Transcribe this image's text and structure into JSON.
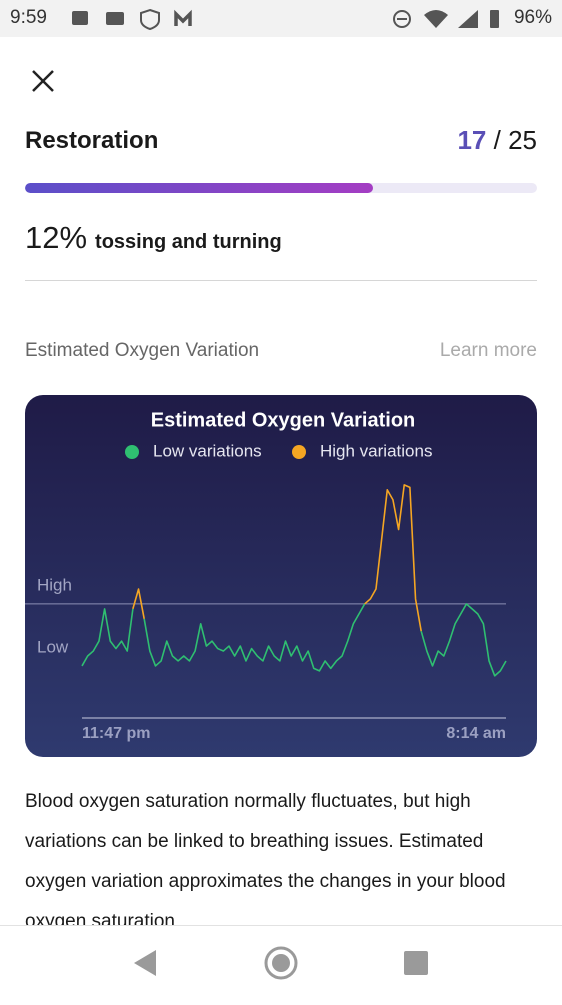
{
  "status_bar": {
    "time": "9:59",
    "battery": "96%"
  },
  "restoration": {
    "title": "Restoration",
    "score": 17,
    "separator": "/",
    "total": 25
  },
  "metric": {
    "value": "12%",
    "label": "tossing and turning"
  },
  "section": {
    "label": "Estimated Oxygen Variation",
    "link": "Learn more"
  },
  "chart_data": {
    "type": "line",
    "title": "Estimated Oxygen Variation",
    "ylim": [
      0,
      100
    ],
    "yticks": [
      {
        "value": 46,
        "label": "High"
      },
      {
        "value": 21,
        "label": "Low"
      }
    ],
    "reference_line": 46,
    "xlabels": [
      "11:47 pm",
      "8:14 am"
    ],
    "series": [
      {
        "name": "Low variations",
        "color": "#2fbf71",
        "values": [
          21,
          25,
          27,
          31,
          44,
          31,
          28,
          31,
          27,
          44,
          null,
          40,
          27,
          21,
          23,
          31,
          25,
          23,
          25,
          23,
          27,
          38,
          29,
          31,
          28,
          27,
          29,
          25,
          29,
          23,
          28,
          25,
          23,
          29,
          25,
          23,
          31,
          25,
          29,
          23,
          27,
          20,
          19,
          23,
          20,
          23,
          25,
          31,
          38,
          42,
          46,
          null,
          null,
          null,
          null,
          null,
          null,
          null,
          null,
          null,
          35,
          27,
          21,
          27,
          25,
          31,
          38,
          42,
          46,
          44,
          42,
          38,
          23,
          17,
          19,
          23
        ]
      },
      {
        "name": "High variations",
        "color": "#f5a623",
        "values": [
          null,
          null,
          null,
          null,
          null,
          null,
          null,
          null,
          null,
          44,
          52,
          40,
          null,
          null,
          null,
          null,
          null,
          null,
          null,
          null,
          null,
          null,
          null,
          null,
          null,
          null,
          null,
          null,
          null,
          null,
          null,
          null,
          null,
          null,
          null,
          null,
          null,
          null,
          null,
          null,
          null,
          null,
          null,
          null,
          null,
          null,
          null,
          null,
          null,
          null,
          46,
          48,
          52,
          72,
          92,
          88,
          76,
          94,
          93,
          48,
          35,
          null,
          null,
          null,
          null,
          null,
          null,
          null,
          null,
          null,
          null,
          null,
          null,
          null,
          null,
          null
        ]
      }
    ]
  },
  "description": "Blood oxygen saturation normally fluctuates, but high variations can be linked to breathing issues. Estimated oxygen variation approximates the changes in your blood oxygen saturation"
}
